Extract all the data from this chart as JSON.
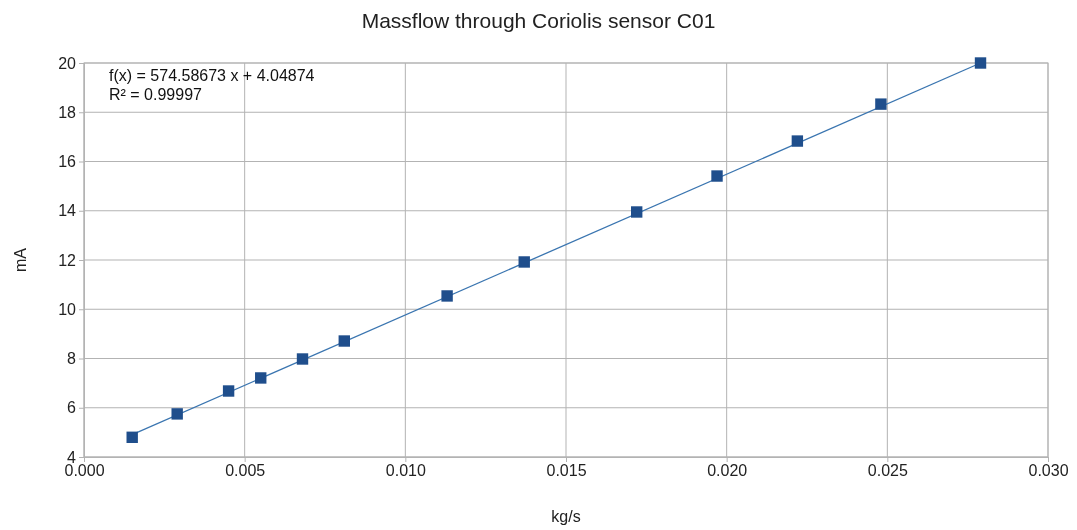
{
  "chart_data": {
    "type": "scatter",
    "title": "Massflow through Coriolis sensor C01",
    "xlabel": "kg/s",
    "ylabel": "mA",
    "annotations": [
      "f(x) = 574.58673 x + 4.04874",
      "R² = 0.99997"
    ],
    "series": [
      {
        "color": "#1f4e8c",
        "marker": "square",
        "x": [
          0.0015,
          0.0029,
          0.0045,
          0.0055,
          0.0068,
          0.0081,
          0.0113,
          0.0137,
          0.0172,
          0.0197,
          0.0222,
          0.0248,
          0.0279
        ],
        "values": [
          4.8,
          5.75,
          6.68,
          7.21,
          7.98,
          8.71,
          10.54,
          11.92,
          13.95,
          15.41,
          16.83,
          18.33,
          20.0
        ]
      },
      {
        "type": "line",
        "color": "#3a75b0",
        "marker": "none",
        "x": [
          0.0015,
          0.0279
        ],
        "values": [
          4.91,
          20.0
        ]
      }
    ],
    "xlim": [
      0,
      0.03
    ],
    "xticks": [
      {
        "value": 0,
        "label": "0.000"
      },
      {
        "value": 0.005,
        "label": "0.005"
      },
      {
        "value": 0.01,
        "label": "0.010"
      },
      {
        "value": 0.015,
        "label": "0.015"
      },
      {
        "value": 0.02,
        "label": "0.020"
      },
      {
        "value": 0.025,
        "label": "0.025"
      },
      {
        "value": 0.03,
        "label": "0.030"
      }
    ],
    "ylim": [
      4,
      20
    ],
    "yticks": [
      4,
      6,
      8,
      10,
      12,
      14,
      16,
      18,
      20
    ],
    "grid": true
  }
}
